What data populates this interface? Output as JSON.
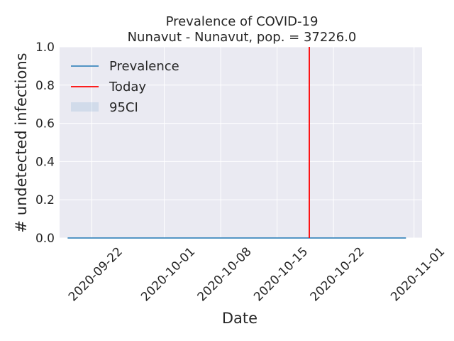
{
  "chart_data": {
    "type": "line",
    "title": "Prevalence of COVID-19",
    "subtitle": "Nunavut - Nunavut, pop. = 37226.0",
    "xlabel": "Date",
    "ylabel": "# undetected infections",
    "ylim": [
      0.0,
      1.0
    ],
    "xlim": [
      "2020-09-18",
      "2020-11-02"
    ],
    "yticks": [
      "0.0",
      "0.2",
      "0.4",
      "0.6",
      "0.8",
      "1.0"
    ],
    "xticks": [
      "2020-09-22",
      "2020-10-01",
      "2020-10-08",
      "2020-10-15",
      "2020-10-22",
      "2020-11-01"
    ],
    "grid": true,
    "legend_position": "upper-left",
    "series": [
      {
        "name": "Prevalence",
        "color": "#1f77b4",
        "x": [
          "2020-09-19",
          "2020-10-31"
        ],
        "y": [
          0.0,
          0.0
        ]
      }
    ],
    "band": {
      "name": "95CI",
      "color": "#1f77b4",
      "opacity": 0.1,
      "x": [
        "2020-09-19",
        "2020-10-31"
      ],
      "lower": [
        0.0,
        0.0
      ],
      "upper": [
        0.0,
        0.0
      ]
    },
    "vline": {
      "name": "Today",
      "color": "#ff0000",
      "x": "2020-10-19"
    },
    "plot_background": "#eaeaf2",
    "grid_color": "#ffffff"
  }
}
